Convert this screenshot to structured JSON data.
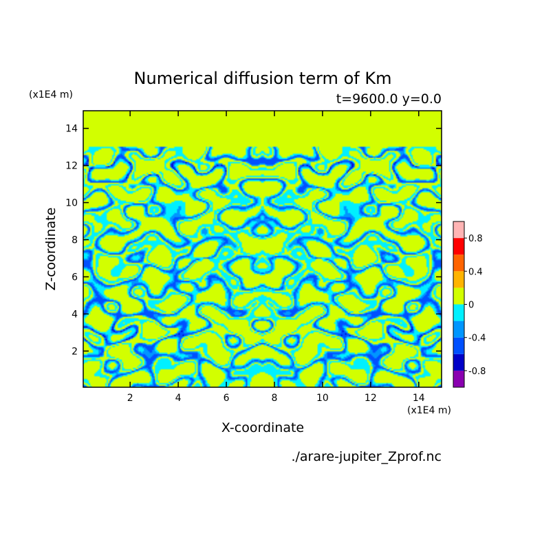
{
  "chart_data": {
    "type": "heatmap",
    "title": "Numerical diffusion term of Km",
    "subtitle": "t=9600.0 y=0.0",
    "xlabel": "X-coordinate",
    "ylabel": "Z-coordinate",
    "x_unit": "(x1E4 m)",
    "y_unit": "(x1E4 m)",
    "source": "./arare-jupiter_Zprof.nc",
    "xlim": [
      0.05,
      14.95
    ],
    "ylim": [
      0.05,
      14.95
    ],
    "x_ticks": [
      2,
      4,
      6,
      8,
      10,
      12,
      14
    ],
    "y_ticks": [
      2,
      4,
      6,
      8,
      10,
      12,
      14
    ],
    "x_tick_labels": [
      "2",
      "4",
      "6",
      "8",
      "10",
      "12",
      "14"
    ],
    "y_tick_labels": [
      "2",
      "4",
      "6",
      "8",
      "10",
      "12",
      "14"
    ],
    "field_note": "",
    "background_level_above_z": 13.0,
    "colorbar": {
      "levels": [
        -1.0,
        -0.8,
        -0.6,
        -0.4,
        -0.2,
        0.0,
        0.2,
        0.4,
        0.6,
        0.8,
        1.0
      ],
      "colors": [
        "#8a00b0",
        "#0000c8",
        "#0050ff",
        "#0096ff",
        "#00f0ff",
        "#d2ff00",
        "#ffb400",
        "#ff6400",
        "#ff0000",
        "#ffb4b4"
      ],
      "tick_values": [
        -0.8,
        -0.4,
        0,
        0.4,
        0.8
      ],
      "tick_labels": [
        "-0.8",
        "-0.4",
        "0",
        "0.4",
        "0.8"
      ]
    }
  }
}
